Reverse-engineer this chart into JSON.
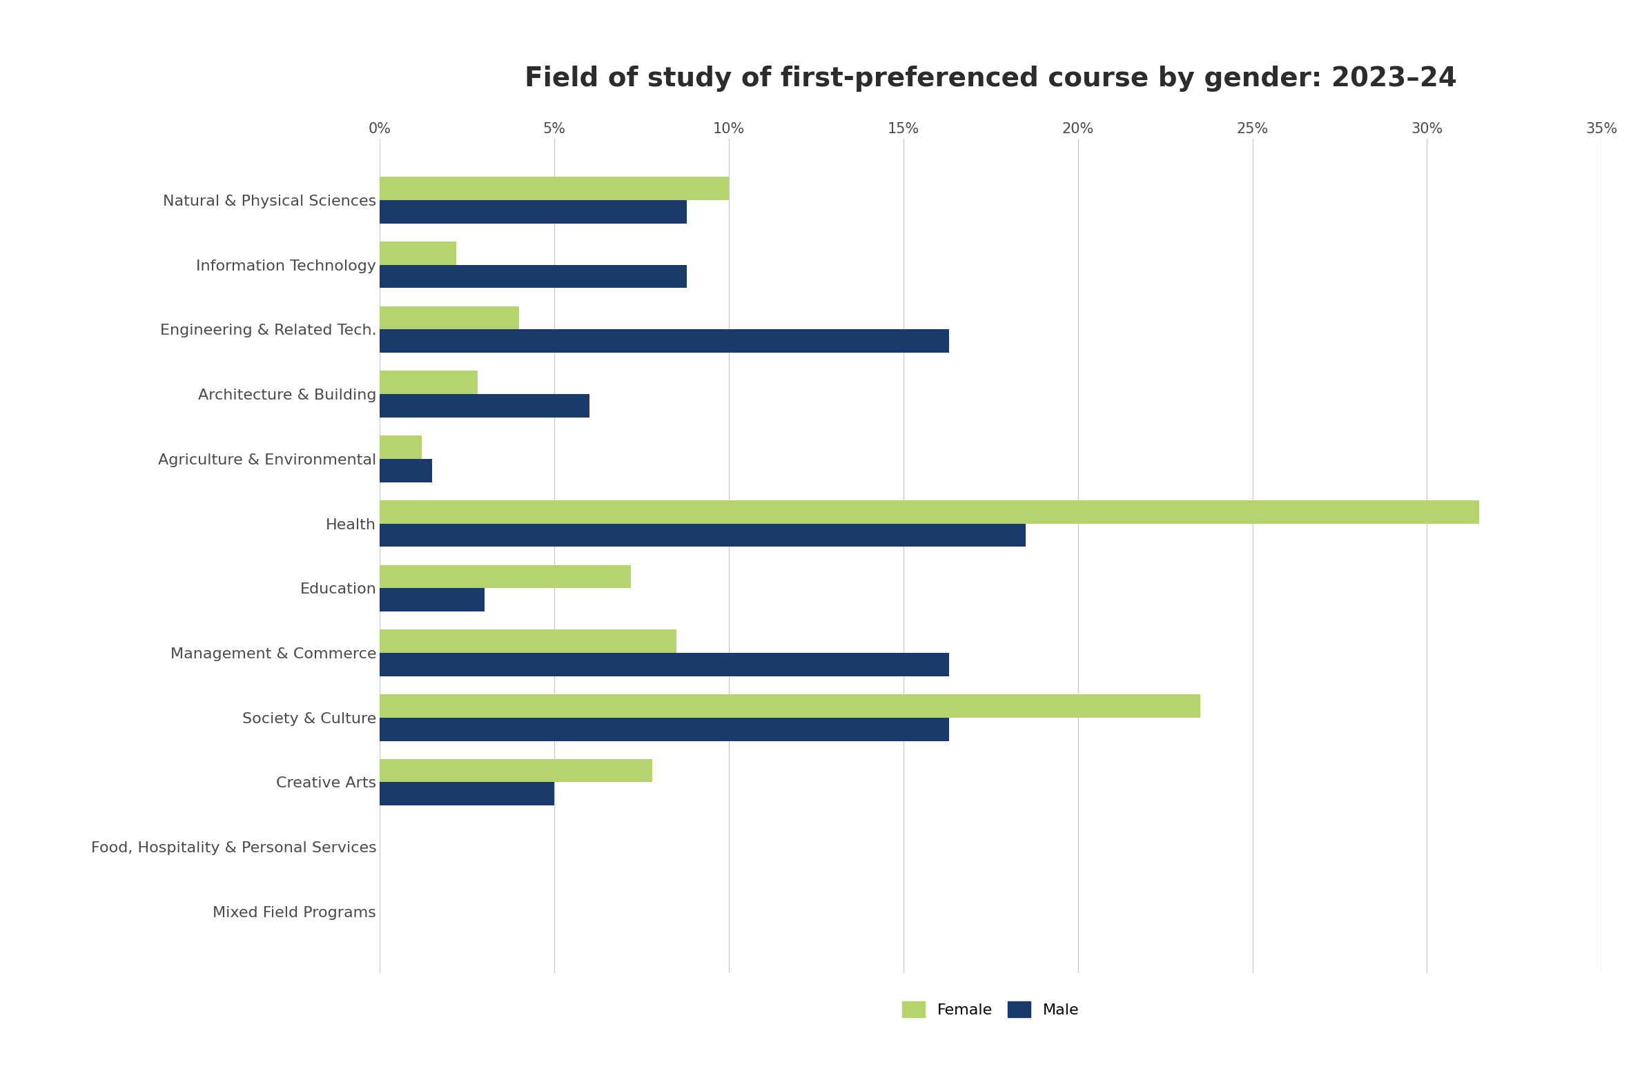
{
  "title": "Field of study of first-preferenced course by gender: 2023–24",
  "categories": [
    "Natural & Physical Sciences",
    "Information Technology",
    "Engineering & Related Tech.",
    "Architecture & Building",
    "Agriculture & Environmental",
    "Health",
    "Education",
    "Management & Commerce",
    "Society & Culture",
    "Creative Arts",
    "Food, Hospitality & Personal Services",
    "Mixed Field Programs"
  ],
  "female_values": [
    10.0,
    2.2,
    4.0,
    2.8,
    1.2,
    31.5,
    7.2,
    8.5,
    23.5,
    7.8,
    0.0,
    0.0
  ],
  "male_values": [
    8.8,
    8.8,
    16.3,
    6.0,
    1.5,
    18.5,
    3.0,
    16.3,
    16.3,
    5.0,
    0.0,
    0.0
  ],
  "female_color": "#b5d46e",
  "male_color": "#1a3a6b",
  "xlim": [
    0,
    35
  ],
  "xticks": [
    0,
    5,
    10,
    15,
    20,
    25,
    30,
    35
  ],
  "xtick_labels": [
    "0%",
    "5%",
    "10%",
    "15%",
    "20%",
    "25%",
    "30%",
    "35%"
  ],
  "background_color": "#ffffff",
  "title_fontsize": 28,
  "label_fontsize": 16,
  "tick_fontsize": 15,
  "legend_fontsize": 16,
  "bar_height": 0.36,
  "title_color": "#2c2c2c",
  "label_color": "#4a4a4a",
  "tick_color": "#4a4a4a",
  "grid_color": "#cccccc"
}
